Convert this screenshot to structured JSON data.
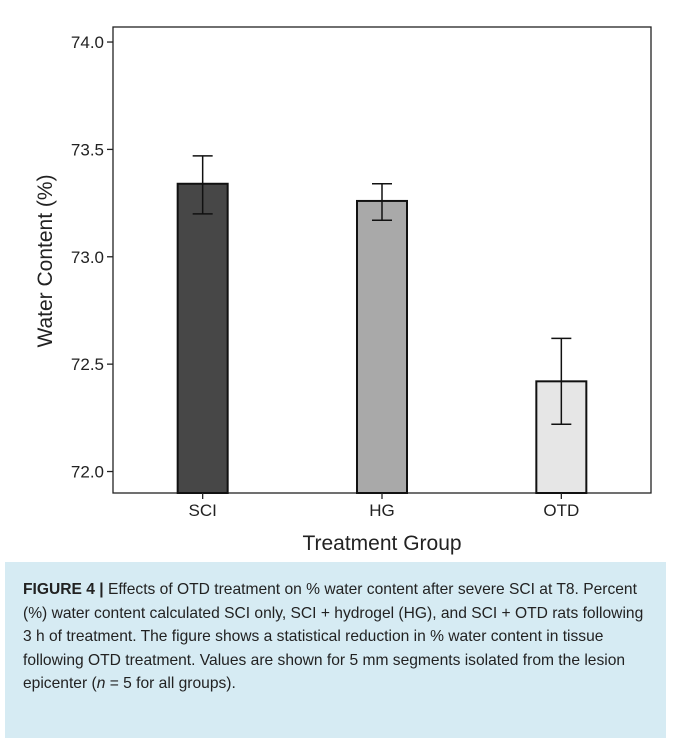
{
  "chart_data": {
    "type": "bar",
    "title": "",
    "xlabel": "Treatment Group",
    "ylabel": "Water Content (%)",
    "categories": [
      "SCI",
      "HG",
      "OTD"
    ],
    "values": [
      73.34,
      73.26,
      72.42
    ],
    "error_low": [
      73.2,
      73.17,
      72.22
    ],
    "error_high": [
      73.47,
      73.34,
      72.62
    ],
    "bar_colors": [
      "#474747",
      "#a9a9a9",
      "#e6e6e6"
    ],
    "ylim": [
      71.9,
      74.07
    ],
    "yticks": [
      72.0,
      72.5,
      73.0,
      73.5,
      74.0
    ],
    "ytick_labels": [
      "72.0",
      "72.5",
      "73.0",
      "73.5",
      "74.0"
    ],
    "grid": false
  },
  "caption": {
    "label": "FIGURE 4 |",
    "part1": " Effects of OTD treatment on % water content after severe SCI at T8. Percent (%) water content calculated SCI only, SCI + hydrogel (HG), and SCI + OTD rats following 3 h of treatment. The figure shows a statistical reduction in % water content in tissue following OTD treatment. Values are shown for 5 mm segments isolated from the lesion epicenter (",
    "n_symbol": "n",
    "part2": " = 5 for all groups)."
  }
}
